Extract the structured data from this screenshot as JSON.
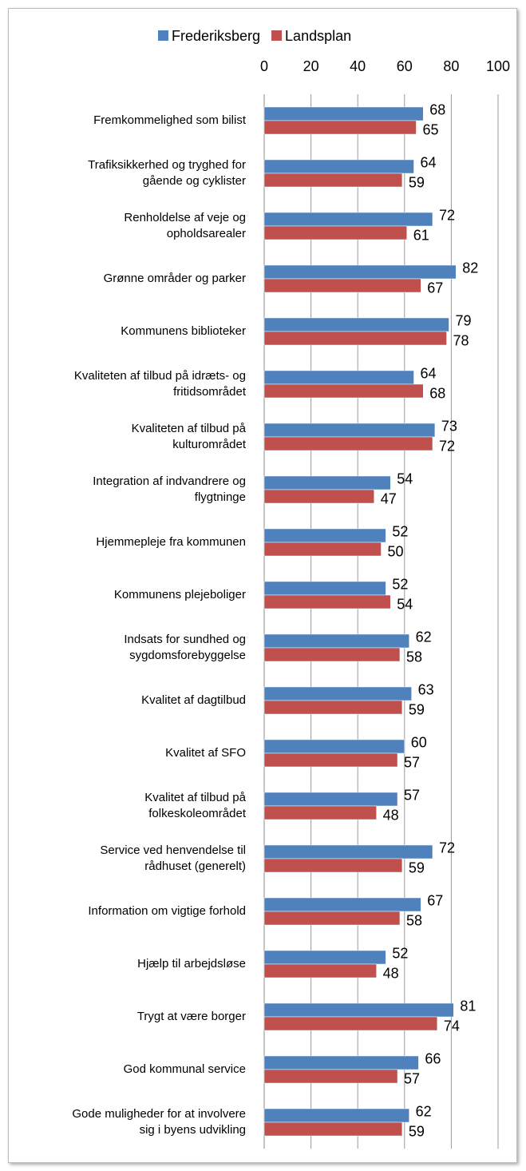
{
  "chart_data": {
    "type": "barh",
    "categories": [
      "Fremkommelighed som bilist",
      "Trafiksikkerhed og tryghed for\ngående og cyklister",
      "Renholdelse af veje og\nopholdsarealer",
      "Grønne områder og parker",
      "Kommunens biblioteker",
      "Kvaliteten af tilbud på idræts- og\nfritidsområdet",
      "Kvaliteten af tilbud på\nkulturområdet",
      "Integration af indvandrere og\nflygtninge",
      "Hjemmepleje fra kommunen",
      "Kommunens plejeboliger",
      "Indsats for sundhed og\nsygdomsforebyggelse",
      "Kvalitet af dagtilbud",
      "Kvalitet af SFO",
      "Kvalitet af tilbud på\nfolkeskoleområdet",
      "Service ved henvendelse til\nrådhuset (generelt)",
      "Information om vigtige forhold",
      "Hjælp til arbejdsløse",
      "Trygt at være borger",
      "God kommunal service",
      "Gode muligheder for at involvere\nsig i byens udvikling"
    ],
    "series": [
      {
        "name": "Frederiksberg",
        "color": "#4f81bd",
        "values": [
          68,
          64,
          72,
          82,
          79,
          64,
          73,
          54,
          52,
          52,
          62,
          63,
          60,
          57,
          72,
          67,
          52,
          81,
          66,
          62
        ]
      },
      {
        "name": "Landsplan",
        "color": "#c0504d",
        "values": [
          65,
          59,
          61,
          67,
          78,
          68,
          72,
          47,
          50,
          54,
          58,
          59,
          57,
          48,
          59,
          58,
          48,
          74,
          57,
          59
        ]
      }
    ],
    "xlim": [
      0,
      100
    ],
    "xticks": [
      0,
      20,
      40,
      60,
      80,
      100
    ],
    "grid": true,
    "legend": "top"
  }
}
